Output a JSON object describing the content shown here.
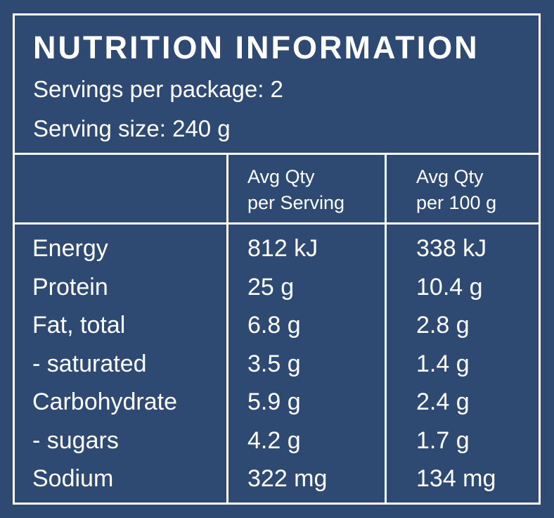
{
  "title": "NUTRITION INFORMATION",
  "servings_per_package": "Servings per package: 2",
  "serving_size": "Serving size: 240 g",
  "columns": {
    "per_serving_line1": "Avg Qty",
    "per_serving_line2": "per Serving",
    "per_100g_line1": "Avg Qty",
    "per_100g_line2": "per 100 g"
  },
  "rows": [
    {
      "label": "Energy",
      "per_serving": "812 kJ",
      "per_100g": "338 kJ"
    },
    {
      "label": "Protein",
      "per_serving": "25 g",
      "per_100g": "10.4 g"
    },
    {
      "label": "Fat, total",
      "per_serving": "6.8 g",
      "per_100g": "2.8 g"
    },
    {
      "label": "- saturated",
      "per_serving": "3.5 g",
      "per_100g": "1.4 g"
    },
    {
      "label": "Carbohydrate",
      "per_serving": "5.9 g",
      "per_100g": "2.4 g"
    },
    {
      "label": "- sugars",
      "per_serving": "4.2 g",
      "per_100g": "1.7 g"
    },
    {
      "label": "Sodium",
      "per_serving": "322 mg",
      "per_100g": "134 mg"
    }
  ],
  "colors": {
    "background": "#2e4a72",
    "text": "#ffffff",
    "rules": "#ffffff"
  }
}
